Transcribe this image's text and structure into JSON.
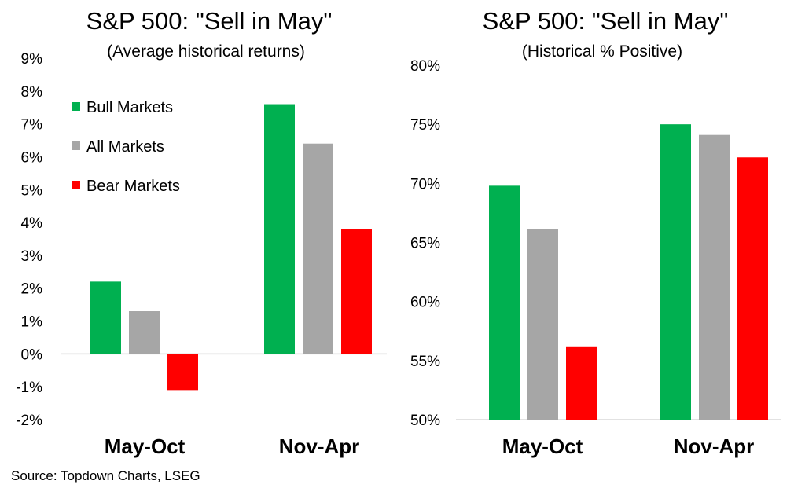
{
  "source": "Source: Topdown Charts, LSEG",
  "colors": {
    "bull": "#00b050",
    "all": "#a6a6a6",
    "bear": "#ff0000",
    "axis": "#d9d9d9"
  },
  "chart_data": [
    {
      "type": "bar",
      "title": "S&P 500: \"Sell in May\"",
      "subtitle": "(Average historical returns)",
      "categories": [
        "May-Oct",
        "Nov-Apr"
      ],
      "series": [
        {
          "name": "Bull Markets",
          "values": [
            2.2,
            7.6
          ]
        },
        {
          "name": "All Markets",
          "values": [
            1.3,
            6.4
          ]
        },
        {
          "name": "Bear Markets",
          "values": [
            -1.1,
            3.8
          ]
        }
      ],
      "ylim": [
        -2,
        9
      ],
      "yticks": [
        "9%",
        "8%",
        "7%",
        "6%",
        "5%",
        "4%",
        "3%",
        "2%",
        "1%",
        "0%",
        "-1%",
        "-2%"
      ],
      "unit": "%",
      "legend": "top-left"
    },
    {
      "type": "bar",
      "title": "S&P 500: \"Sell in May\"",
      "subtitle": "(Historical % Positive)",
      "categories": [
        "May-Oct",
        "Nov-Apr"
      ],
      "series": [
        {
          "name": "Bull Markets",
          "values": [
            69.8,
            75.0
          ]
        },
        {
          "name": "All Markets",
          "values": [
            66.1,
            74.1
          ]
        },
        {
          "name": "Bear Markets",
          "values": [
            56.2,
            72.2
          ]
        }
      ],
      "ylim": [
        50,
        80
      ],
      "yticks": [
        "80%",
        "75%",
        "70%",
        "65%",
        "60%",
        "55%",
        "50%"
      ],
      "unit": "%"
    }
  ]
}
